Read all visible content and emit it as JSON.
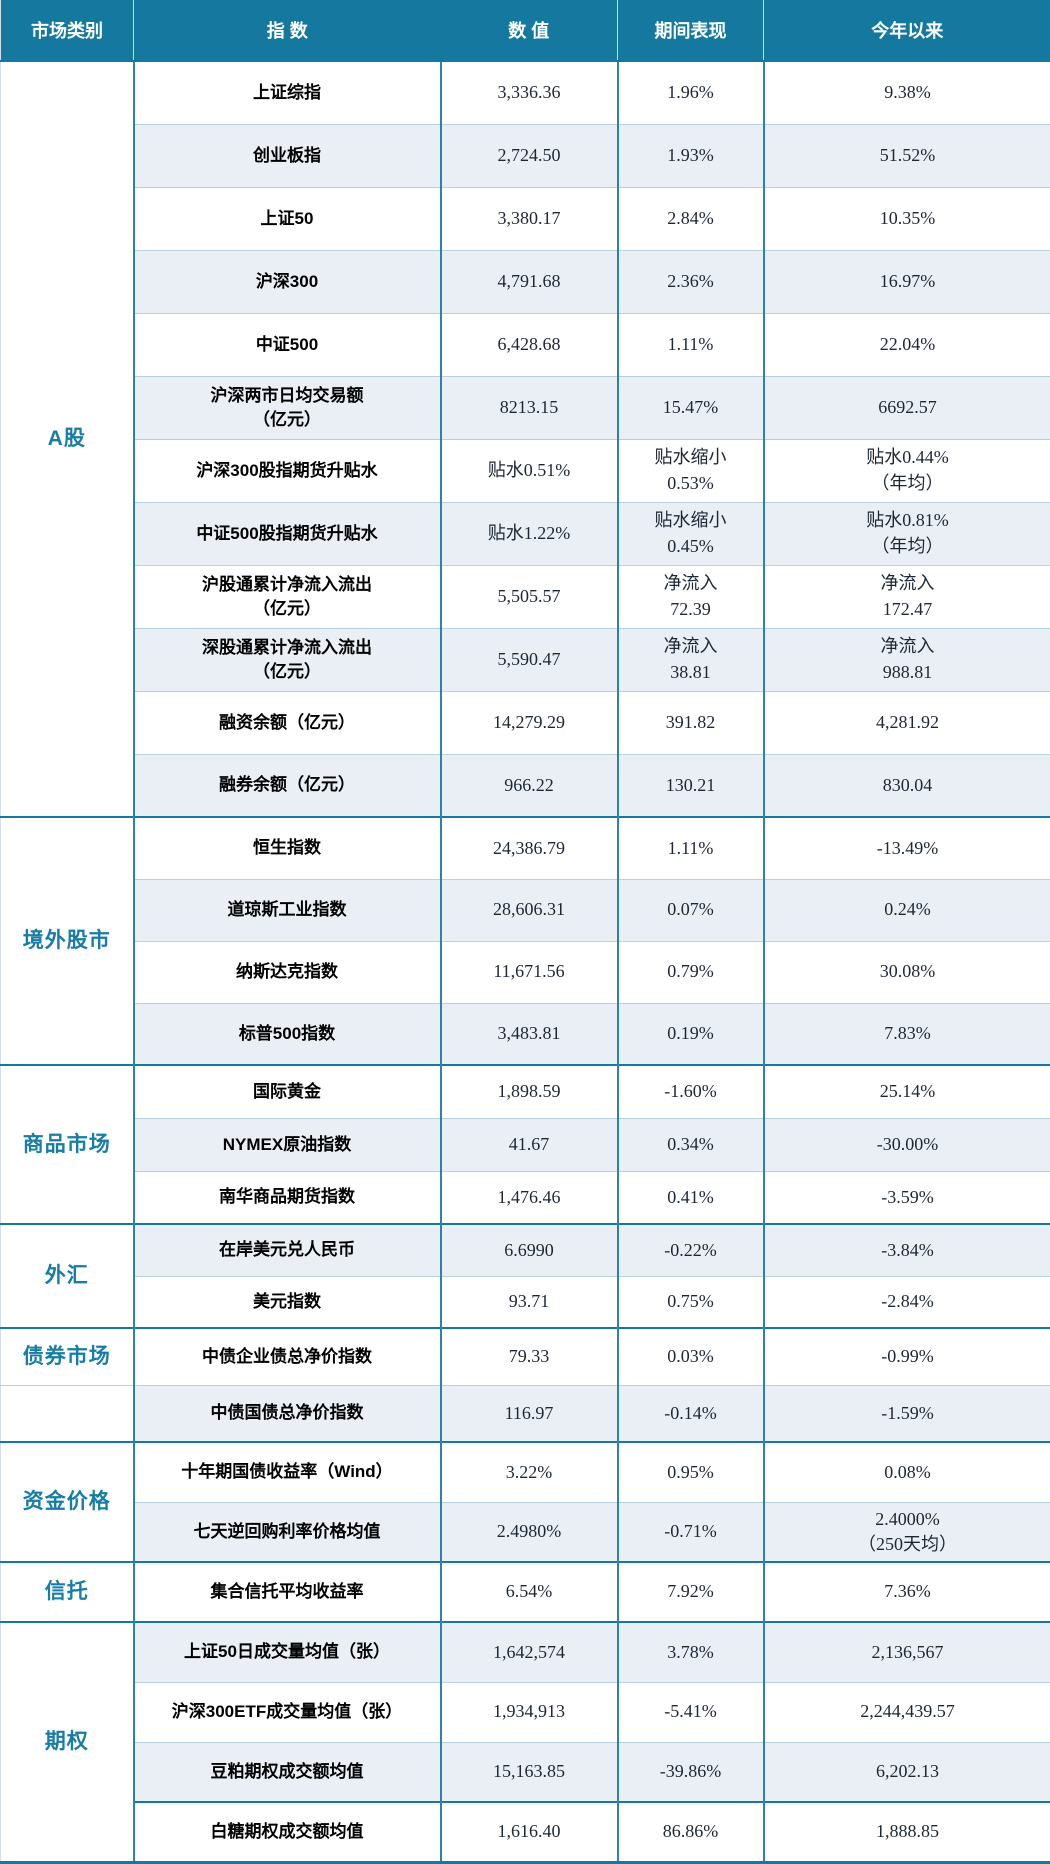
{
  "colors": {
    "header_bg": "#15799f",
    "section_border": "#15799f",
    "grid_line": "#2a83a8",
    "row_separator": "#b9d0de",
    "light_row_bg": "#e9eff5",
    "category_text": "#177ca6",
    "value_text": "#1d2734",
    "header_text": "#ffffff"
  },
  "table": {
    "headers": {
      "category": "市场类别",
      "index": "指 数",
      "value": "数 值",
      "period": "期间表现",
      "ytd": "今年以来"
    },
    "sections": [
      {
        "label": "A股",
        "rows": [
          {
            "index": "上证综指",
            "value": "3,336.36",
            "period": "1.96%",
            "ytd": "9.38%",
            "shade": "white"
          },
          {
            "index": "创业板指",
            "value": "2,724.50",
            "period": "1.93%",
            "ytd": "51.52%",
            "shade": "light"
          },
          {
            "index": "上证50",
            "value": "3,380.17",
            "period": "2.84%",
            "ytd": "10.35%",
            "shade": "white"
          },
          {
            "index": "沪深300",
            "value": "4,791.68",
            "period": "2.36%",
            "ytd": "16.97%",
            "shade": "light"
          },
          {
            "index": "中证500",
            "value": "6,428.68",
            "period": "1.11%",
            "ytd": "22.04%",
            "shade": "white"
          },
          {
            "index": "沪深两市日均交易额\n（亿元）",
            "value": "8213.15",
            "period": "15.47%",
            "ytd": "6692.57",
            "shade": "light"
          },
          {
            "index": "沪深300股指期货升贴水",
            "value": "贴水0.51%",
            "period": "贴水缩小\n0.53%",
            "ytd": "贴水0.44%\n（年均）",
            "shade": "white"
          },
          {
            "index": "中证500股指期货升贴水",
            "value": "贴水1.22%",
            "period": "贴水缩小\n0.45%",
            "ytd": "贴水0.81%\n（年均）",
            "shade": "light"
          },
          {
            "index": "沪股通累计净流入流出\n（亿元）",
            "value": "5,505.57",
            "period": "净流入\n72.39",
            "ytd": "净流入\n172.47",
            "shade": "white"
          },
          {
            "index": "深股通累计净流入流出\n（亿元）",
            "value": "5,590.47",
            "period": "净流入\n38.81",
            "ytd": "净流入\n988.81",
            "shade": "light"
          },
          {
            "index": "融资余额（亿元）",
            "value": "14,279.29",
            "period": "391.82",
            "ytd": "4,281.92",
            "shade": "white"
          },
          {
            "index": "融券余额（亿元）",
            "value": "966.22",
            "period": "130.21",
            "ytd": "830.04",
            "shade": "light"
          }
        ]
      },
      {
        "label": "境外股市",
        "rows": [
          {
            "index": "恒生指数",
            "value": "24,386.79",
            "period": "1.11%",
            "ytd": "-13.49%",
            "shade": "white"
          },
          {
            "index": "道琼斯工业指数",
            "value": "28,606.31",
            "period": "0.07%",
            "ytd": "0.24%",
            "shade": "light"
          },
          {
            "index": "纳斯达克指数",
            "value": "11,671.56",
            "period": "0.79%",
            "ytd": "30.08%",
            "shade": "white"
          },
          {
            "index": "标普500指数",
            "value": "3,483.81",
            "period": "0.19%",
            "ytd": "7.83%",
            "shade": "light"
          }
        ]
      },
      {
        "label": "商品市场",
        "rows": [
          {
            "index": "国际黄金",
            "value": "1,898.59",
            "period": "-1.60%",
            "ytd": "25.14%",
            "shade": "white"
          },
          {
            "index": "NYMEX原油指数",
            "value": "41.67",
            "period": "0.34%",
            "ytd": "-30.00%",
            "shade": "light"
          },
          {
            "index": "南华商品期货指数",
            "value": "1,476.46",
            "period": "0.41%",
            "ytd": "-3.59%",
            "shade": "white"
          }
        ]
      },
      {
        "label": "外汇",
        "rows": [
          {
            "index": "在岸美元兑人民币",
            "value": "6.6990",
            "period": "-0.22%",
            "ytd": "-3.84%",
            "shade": "light"
          },
          {
            "index": "美元指数",
            "value": "93.71",
            "period": "0.75%",
            "ytd": "-2.84%",
            "shade": "white"
          }
        ]
      },
      {
        "label": "债券市场",
        "label_rows": 1,
        "rows": [
          {
            "index": "中债企业债总净价指数",
            "value": "79.33",
            "period": "0.03%",
            "ytd": "-0.99%",
            "shade": "white"
          },
          {
            "index": "中债国债总净价指数",
            "value": "116.97",
            "period": "-0.14%",
            "ytd": "-1.59%",
            "shade": "light"
          }
        ]
      },
      {
        "label": "资金价格",
        "rows": [
          {
            "index": "十年期国债收益率（Wind）",
            "value": "3.22%",
            "period": "0.95%",
            "ytd": "0.08%",
            "shade": "white"
          },
          {
            "index": "七天逆回购利率价格均值",
            "value": "2.4980%",
            "period": "-0.71%",
            "ytd": "2.4000%\n（250天均）",
            "shade": "light"
          }
        ]
      },
      {
        "label": "信托",
        "rows": [
          {
            "index": "集合信托平均收益率",
            "value": "6.54%",
            "period": "7.92%",
            "ytd": "7.36%",
            "shade": "white"
          }
        ]
      },
      {
        "label": "期权",
        "rows": [
          {
            "index": "上证50日成交量均值（张）",
            "value": "1,642,574",
            "period": "3.78%",
            "ytd": "2,136,567",
            "shade": "light"
          },
          {
            "index": "沪深300ETF成交量均值（张）",
            "value": "1,934,913",
            "period": "-5.41%",
            "ytd": "2,244,439.57",
            "shade": "white"
          },
          {
            "index": "豆粕期权成交额均值",
            "value": "15,163.85",
            "period": "-39.86%",
            "ytd": "6,202.13",
            "shade": "light"
          },
          {
            "index": "白糖期权成交额均值",
            "value": "1,616.40",
            "period": "86.86%",
            "ytd": "1,888.85",
            "shade": "white",
            "strong_top": true
          }
        ]
      }
    ]
  }
}
